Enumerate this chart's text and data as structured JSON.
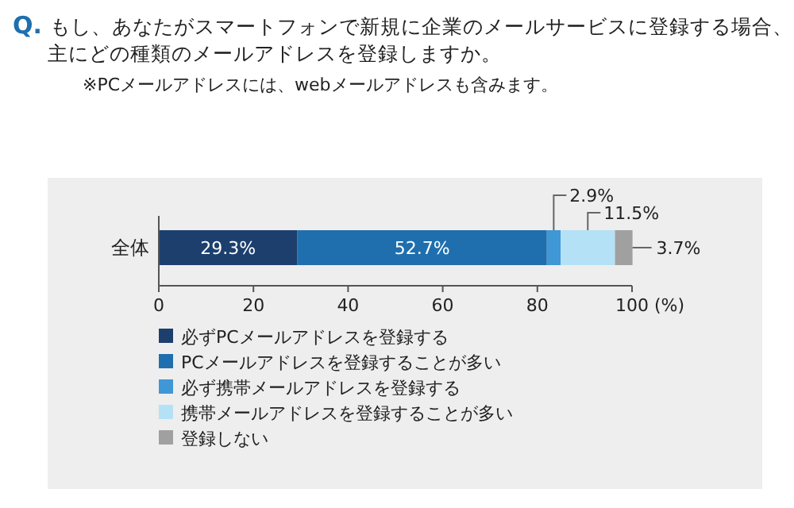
{
  "chart_data": {
    "type": "bar",
    "orientation": "horizontal",
    "stacked": true,
    "title": "Q. もし、あなたがスマートフォンで新規に企業のメールサービスに登録する場合、主にどの種類のメールアドレスを登録しますか。",
    "annotations": [
      "※PCメールアドレスには、webメールアドレスも含みます。"
    ],
    "categories": [
      "全体"
    ],
    "series": [
      {
        "name": "必ずPCメールアドレスを登録する",
        "color": "#1c3f6e",
        "values": [
          29.3
        ],
        "value_labels": [
          "29.3%"
        ]
      },
      {
        "name": "PCメールアドレスを登録することが多い",
        "color": "#1f6fae",
        "values": [
          52.7
        ],
        "value_labels": [
          "52.7%"
        ]
      },
      {
        "name": "必ず携帯メールアドレスを登録する",
        "color": "#3f97d6",
        "values": [
          2.9
        ],
        "value_labels": [
          "2.9%"
        ]
      },
      {
        "name": "携帯メールアドレスを登録することが多い",
        "color": "#b5e1f6",
        "values": [
          11.5
        ],
        "value_labels": [
          "11.5%"
        ]
      },
      {
        "name": "登録しない",
        "color": "#a0a0a0",
        "values": [
          3.7
        ],
        "value_labels": [
          "3.7%"
        ]
      }
    ],
    "xlim": [
      0,
      100
    ],
    "xticks": [
      0,
      20,
      40,
      60,
      80,
      100
    ],
    "xlabel": "(%)",
    "legend": "bottom"
  }
}
